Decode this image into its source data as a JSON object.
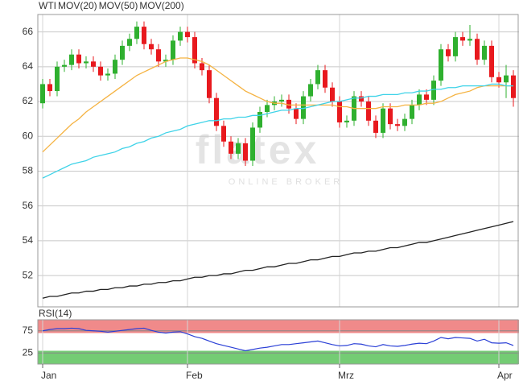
{
  "watermark": {
    "brand": "flatex",
    "tagline": "ONLINE BROKER"
  },
  "chart_data": [
    {
      "type": "candlestick",
      "categories": [
        "Jan",
        null,
        null,
        null,
        null,
        null,
        null,
        null,
        null,
        null,
        null,
        null,
        null,
        null,
        null,
        null,
        null,
        null,
        null,
        null,
        "Feb",
        null,
        null,
        null,
        null,
        null,
        null,
        null,
        null,
        null,
        null,
        null,
        null,
        null,
        null,
        null,
        null,
        null,
        null,
        null,
        null,
        "Mrz",
        null,
        null,
        null,
        null,
        null,
        null,
        null,
        null,
        null,
        null,
        null,
        null,
        null,
        null,
        null,
        null,
        null,
        null,
        null,
        null,
        null,
        "Apr",
        null,
        null
      ],
      "ylim": [
        50.2,
        67.0
      ],
      "yticks": [
        52,
        54,
        56,
        58,
        60,
        62,
        64,
        66
      ],
      "grid": true,
      "series": [
        {
          "name": "WTI",
          "type": "candlestick",
          "color": "#e8191e",
          "up_color": "#2fb02f",
          "open": [
            61.9,
            63.0,
            62.6,
            64.0,
            64.1,
            64.7,
            64.2,
            64.3,
            64.0,
            63.5,
            63.6,
            64.4,
            65.2,
            65.6,
            66.3,
            65.3,
            65.0,
            64.3,
            64.4,
            65.5,
            66.0,
            65.7,
            64.2,
            63.8,
            62.2,
            60.6,
            59.7,
            59.0,
            59.6,
            58.6,
            60.5,
            61.4,
            61.8,
            62.0,
            62.1,
            61.6,
            61.0,
            62.3,
            63.0,
            63.8,
            62.8,
            62.0,
            60.8,
            60.9,
            62.3,
            62.0,
            60.9,
            60.2,
            61.6,
            60.7,
            60.6,
            61.0,
            61.8,
            62.4,
            62.1,
            63.2,
            65.0,
            64.6,
            65.7,
            65.5,
            65.6,
            64.4,
            65.2,
            63.4,
            63.1,
            63.5
          ],
          "high": [
            63.3,
            63.3,
            64.3,
            64.4,
            65.0,
            65.0,
            64.6,
            64.6,
            64.3,
            63.9,
            64.7,
            65.5,
            65.9,
            66.6,
            66.6,
            65.6,
            65.3,
            64.7,
            65.8,
            66.3,
            66.3,
            66.0,
            64.5,
            64.1,
            62.5,
            60.9,
            60.0,
            59.9,
            59.9,
            60.8,
            61.7,
            62.1,
            62.3,
            62.4,
            62.4,
            61.9,
            62.6,
            63.3,
            64.1,
            64.1,
            63.1,
            62.3,
            61.2,
            62.6,
            62.6,
            62.3,
            61.2,
            61.9,
            61.9,
            61.0,
            61.3,
            62.1,
            62.7,
            62.7,
            63.5,
            65.3,
            65.3,
            66.0,
            66.0,
            66.4,
            65.9,
            65.5,
            65.5,
            63.7,
            64.1,
            63.8
          ],
          "low": [
            61.6,
            62.3,
            62.3,
            63.7,
            63.8,
            63.9,
            63.9,
            63.7,
            63.2,
            63.2,
            63.3,
            64.1,
            64.9,
            65.3,
            65.0,
            64.7,
            64.0,
            64.0,
            64.1,
            65.2,
            65.4,
            63.9,
            63.5,
            61.9,
            60.3,
            59.4,
            58.7,
            58.7,
            58.3,
            58.3,
            60.2,
            61.1,
            61.5,
            61.7,
            61.3,
            60.7,
            60.7,
            62.0,
            62.7,
            62.5,
            61.7,
            60.5,
            60.5,
            60.6,
            61.7,
            60.6,
            59.9,
            59.9,
            60.4,
            60.3,
            60.3,
            60.7,
            61.5,
            61.8,
            61.8,
            62.9,
            64.3,
            64.3,
            65.2,
            65.2,
            64.1,
            64.1,
            63.1,
            62.8,
            62.2,
            61.7
          ],
          "close": [
            63.0,
            62.6,
            64.0,
            64.1,
            64.7,
            64.2,
            64.3,
            64.0,
            63.5,
            63.6,
            64.4,
            65.2,
            65.6,
            66.3,
            65.3,
            65.0,
            64.3,
            64.4,
            65.5,
            66.0,
            65.7,
            64.2,
            63.8,
            62.2,
            60.6,
            59.7,
            59.0,
            59.6,
            58.6,
            60.5,
            61.4,
            61.8,
            62.0,
            62.1,
            61.6,
            61.0,
            62.3,
            63.0,
            63.8,
            62.8,
            62.0,
            60.8,
            60.9,
            62.3,
            62.0,
            60.9,
            60.2,
            61.6,
            60.7,
            60.6,
            61.0,
            61.8,
            62.4,
            62.1,
            63.2,
            65.0,
            64.6,
            65.7,
            65.5,
            65.6,
            64.4,
            65.2,
            63.4,
            63.1,
            63.5,
            62.2
          ]
        },
        {
          "name": "MOV(20)",
          "type": "line",
          "color": "#f5b342",
          "values": [
            59.1,
            59.5,
            59.9,
            60.3,
            60.7,
            61.0,
            61.4,
            61.7,
            62.0,
            62.3,
            62.6,
            62.9,
            63.2,
            63.5,
            63.7,
            63.9,
            64.1,
            64.3,
            64.4,
            64.5,
            64.5,
            64.4,
            64.3,
            64.1,
            63.8,
            63.5,
            63.2,
            62.9,
            62.6,
            62.4,
            62.2,
            62.0,
            61.9,
            61.9,
            61.8,
            61.8,
            61.8,
            61.8,
            61.8,
            61.8,
            61.8,
            61.7,
            61.7,
            61.6,
            61.6,
            61.6,
            61.6,
            61.7,
            61.7,
            61.7,
            61.8,
            61.8,
            61.8,
            61.9,
            61.9,
            62.0,
            62.2,
            62.4,
            62.5,
            62.6,
            62.8,
            62.9,
            62.9,
            62.9,
            62.9,
            62.9
          ]
        },
        {
          "name": "MOV(50)",
          "type": "line",
          "color": "#3fd3e8",
          "values": [
            57.6,
            57.8,
            58.0,
            58.2,
            58.4,
            58.5,
            58.6,
            58.8,
            58.9,
            59.0,
            59.1,
            59.3,
            59.4,
            59.6,
            59.7,
            59.9,
            60.0,
            60.2,
            60.3,
            60.4,
            60.6,
            60.7,
            60.8,
            60.9,
            60.9,
            61.0,
            61.0,
            61.1,
            61.1,
            61.2,
            61.2,
            61.3,
            61.4,
            61.5,
            61.5,
            61.6,
            61.6,
            61.7,
            61.8,
            61.9,
            62.0,
            62.0,
            62.1,
            62.2,
            62.2,
            62.3,
            62.3,
            62.4,
            62.4,
            62.4,
            62.5,
            62.5,
            62.6,
            62.6,
            62.7,
            62.7,
            62.8,
            62.8,
            62.9,
            62.9,
            62.9,
            62.9,
            63.0,
            63.0,
            62.9,
            62.9
          ]
        },
        {
          "name": "MOV(200)",
          "type": "line",
          "color": "#222222",
          "values": [
            50.7,
            50.8,
            50.8,
            50.9,
            51.0,
            51.0,
            51.1,
            51.1,
            51.2,
            51.2,
            51.3,
            51.3,
            51.4,
            51.4,
            51.5,
            51.5,
            51.6,
            51.6,
            51.7,
            51.7,
            51.8,
            51.9,
            51.9,
            52.0,
            52.0,
            52.1,
            52.1,
            52.2,
            52.3,
            52.3,
            52.4,
            52.5,
            52.5,
            52.6,
            52.7,
            52.7,
            52.8,
            52.9,
            52.9,
            53.0,
            53.1,
            53.1,
            53.2,
            53.3,
            53.3,
            53.4,
            53.4,
            53.5,
            53.6,
            53.6,
            53.7,
            53.8,
            53.9,
            53.9,
            54.0,
            54.1,
            54.2,
            54.3,
            54.4,
            54.5,
            54.6,
            54.7,
            54.8,
            54.9,
            55.0,
            55.1
          ]
        }
      ]
    },
    {
      "type": "line",
      "ylim": [
        0,
        100
      ],
      "yticks": [
        25,
        75
      ],
      "grid": true,
      "bands": [
        {
          "range": [
            70,
            100
          ],
          "color": "#f08a8a"
        },
        {
          "range": [
            0,
            30
          ],
          "color": "#74cc74"
        }
      ],
      "series": [
        {
          "name": "RSI(14)",
          "color": "#2a3fd6",
          "values": [
            75,
            78,
            80,
            80,
            81,
            80,
            76,
            75,
            74,
            72,
            74,
            76,
            78,
            80,
            81,
            76,
            72,
            70,
            72,
            73,
            68,
            62,
            58,
            52,
            46,
            42,
            38,
            34,
            30,
            33,
            36,
            38,
            41,
            44,
            44,
            46,
            48,
            50,
            52,
            48,
            44,
            41,
            42,
            46,
            45,
            41,
            39,
            44,
            41,
            40,
            42,
            45,
            47,
            46,
            52,
            60,
            57,
            60,
            59,
            58,
            52,
            56,
            48,
            47,
            48,
            42
          ]
        }
      ]
    }
  ]
}
